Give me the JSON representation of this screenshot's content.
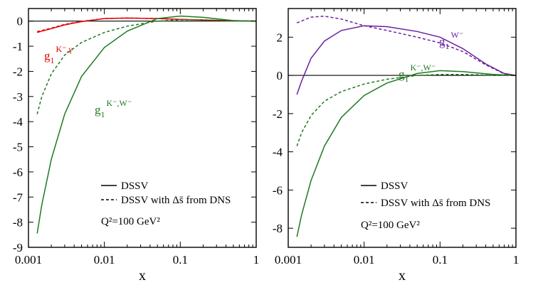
{
  "chart_data": [
    {
      "type": "line",
      "xlabel": "x",
      "xscale": "log",
      "xlim": [
        0.001,
        1
      ],
      "ylim": [
        -9,
        0.5
      ],
      "xticks": [
        "0.001",
        "0.01",
        "0.1",
        "1"
      ],
      "yticks": [
        "0",
        "-1",
        "-2",
        "-3",
        "-4",
        "-5",
        "-6",
        "-7",
        "-8",
        "-9"
      ],
      "legend": {
        "position": "bottom-right",
        "entries": [
          {
            "label": "DSSV",
            "style": "solid"
          },
          {
            "label": "DSSV with Δs̄ from DNS",
            "style": "dashed"
          }
        ],
        "note": "Q²=100 GeV²"
      },
      "annotations": [
        {
          "base": "g",
          "sub": "1",
          "sup": "K⁻,γ",
          "color": "#e00000"
        },
        {
          "base": "g",
          "sub": "1",
          "sup": "K⁻,W⁻",
          "color": "#1f7a1f"
        }
      ],
      "series": [
        {
          "color": "#e00000",
          "style": "solid",
          "x": [
            0.0013,
            0.0015,
            0.002,
            0.003,
            0.005,
            0.01,
            0.02,
            0.05,
            0.1,
            0.3,
            0.6,
            1
          ],
          "y": [
            -0.45,
            -0.4,
            -0.3,
            -0.15,
            -0.02,
            0.1,
            0.12,
            0.1,
            0.07,
            0.03,
            0.01,
            0
          ]
        },
        {
          "color": "#e00000",
          "style": "dashed",
          "x": [
            0.0013,
            0.002,
            0.003,
            0.005,
            0.01,
            0.02,
            0.05,
            0.1,
            0.3,
            1
          ],
          "y": [
            -0.42,
            -0.28,
            -0.13,
            -0.01,
            0.1,
            0.12,
            0.1,
            0.07,
            0.03,
            0
          ]
        },
        {
          "color": "#1f7a1f",
          "style": "solid",
          "x": [
            0.0013,
            0.0015,
            0.002,
            0.003,
            0.005,
            0.01,
            0.02,
            0.05,
            0.1,
            0.2,
            0.5,
            1
          ],
          "y": [
            -8.45,
            -7.3,
            -5.5,
            -3.7,
            -2.2,
            -1.05,
            -0.4,
            0.1,
            0.2,
            0.15,
            0.02,
            0
          ]
        },
        {
          "color": "#1f7a1f",
          "style": "dashed",
          "x": [
            0.0013,
            0.0015,
            0.002,
            0.003,
            0.005,
            0.01,
            0.02,
            0.05,
            0.1,
            0.2,
            0.5,
            1
          ],
          "y": [
            -3.7,
            -3.0,
            -2.1,
            -1.35,
            -0.85,
            -0.45,
            -0.2,
            0.0,
            0.05,
            0.05,
            0.01,
            0
          ]
        }
      ]
    },
    {
      "type": "line",
      "xlabel": "x",
      "xscale": "log",
      "xlim": [
        0.001,
        1
      ],
      "ylim": [
        -9,
        3.5
      ],
      "xticks": [
        "0.001",
        "0.01",
        "0.1",
        "1"
      ],
      "yticks": [
        "2",
        "0",
        "-2",
        "-4",
        "-6",
        "-8"
      ],
      "legend": {
        "position": "bottom-right",
        "entries": [
          {
            "label": "DSSV",
            "style": "solid"
          },
          {
            "label": "DSSV with Δs̄ from DNS",
            "style": "dashed"
          }
        ],
        "note": "Q²=100 GeV²"
      },
      "annotations": [
        {
          "base": "g",
          "sub": "1",
          "sup": "W⁻",
          "color": "#6a1fa0"
        },
        {
          "base": "g",
          "sub": "1",
          "sup": "K⁻,W⁻",
          "color": "#1f7a1f"
        }
      ],
      "series": [
        {
          "color": "#6a1fa0",
          "style": "solid",
          "x": [
            0.0013,
            0.0015,
            0.002,
            0.003,
            0.005,
            0.01,
            0.02,
            0.05,
            0.1,
            0.2,
            0.4,
            0.7,
            1
          ],
          "y": [
            -1.0,
            -0.3,
            0.9,
            1.8,
            2.35,
            2.6,
            2.55,
            2.3,
            2.0,
            1.4,
            0.6,
            0.1,
            0
          ]
        },
        {
          "color": "#6a1fa0",
          "style": "dashed",
          "x": [
            0.0013,
            0.002,
            0.003,
            0.005,
            0.01,
            0.02,
            0.05,
            0.1,
            0.2,
            0.4,
            0.7,
            1
          ],
          "y": [
            2.75,
            3.05,
            3.1,
            2.95,
            2.6,
            2.35,
            2.0,
            1.7,
            1.25,
            0.55,
            0.08,
            0
          ]
        },
        {
          "color": "#1f7a1f",
          "style": "solid",
          "x": [
            0.0013,
            0.0015,
            0.002,
            0.003,
            0.005,
            0.01,
            0.02,
            0.05,
            0.1,
            0.2,
            0.5,
            1
          ],
          "y": [
            -8.45,
            -7.3,
            -5.5,
            -3.7,
            -2.2,
            -1.05,
            -0.4,
            0.1,
            0.25,
            0.2,
            0.05,
            0
          ]
        },
        {
          "color": "#1f7a1f",
          "style": "dashed",
          "x": [
            0.0013,
            0.0015,
            0.002,
            0.003,
            0.005,
            0.01,
            0.02,
            0.05,
            0.1,
            0.2,
            0.5,
            1
          ],
          "y": [
            -3.7,
            -3.0,
            -2.1,
            -1.35,
            -0.85,
            -0.45,
            -0.2,
            0.0,
            0.05,
            0.05,
            0.01,
            0
          ]
        }
      ]
    }
  ]
}
